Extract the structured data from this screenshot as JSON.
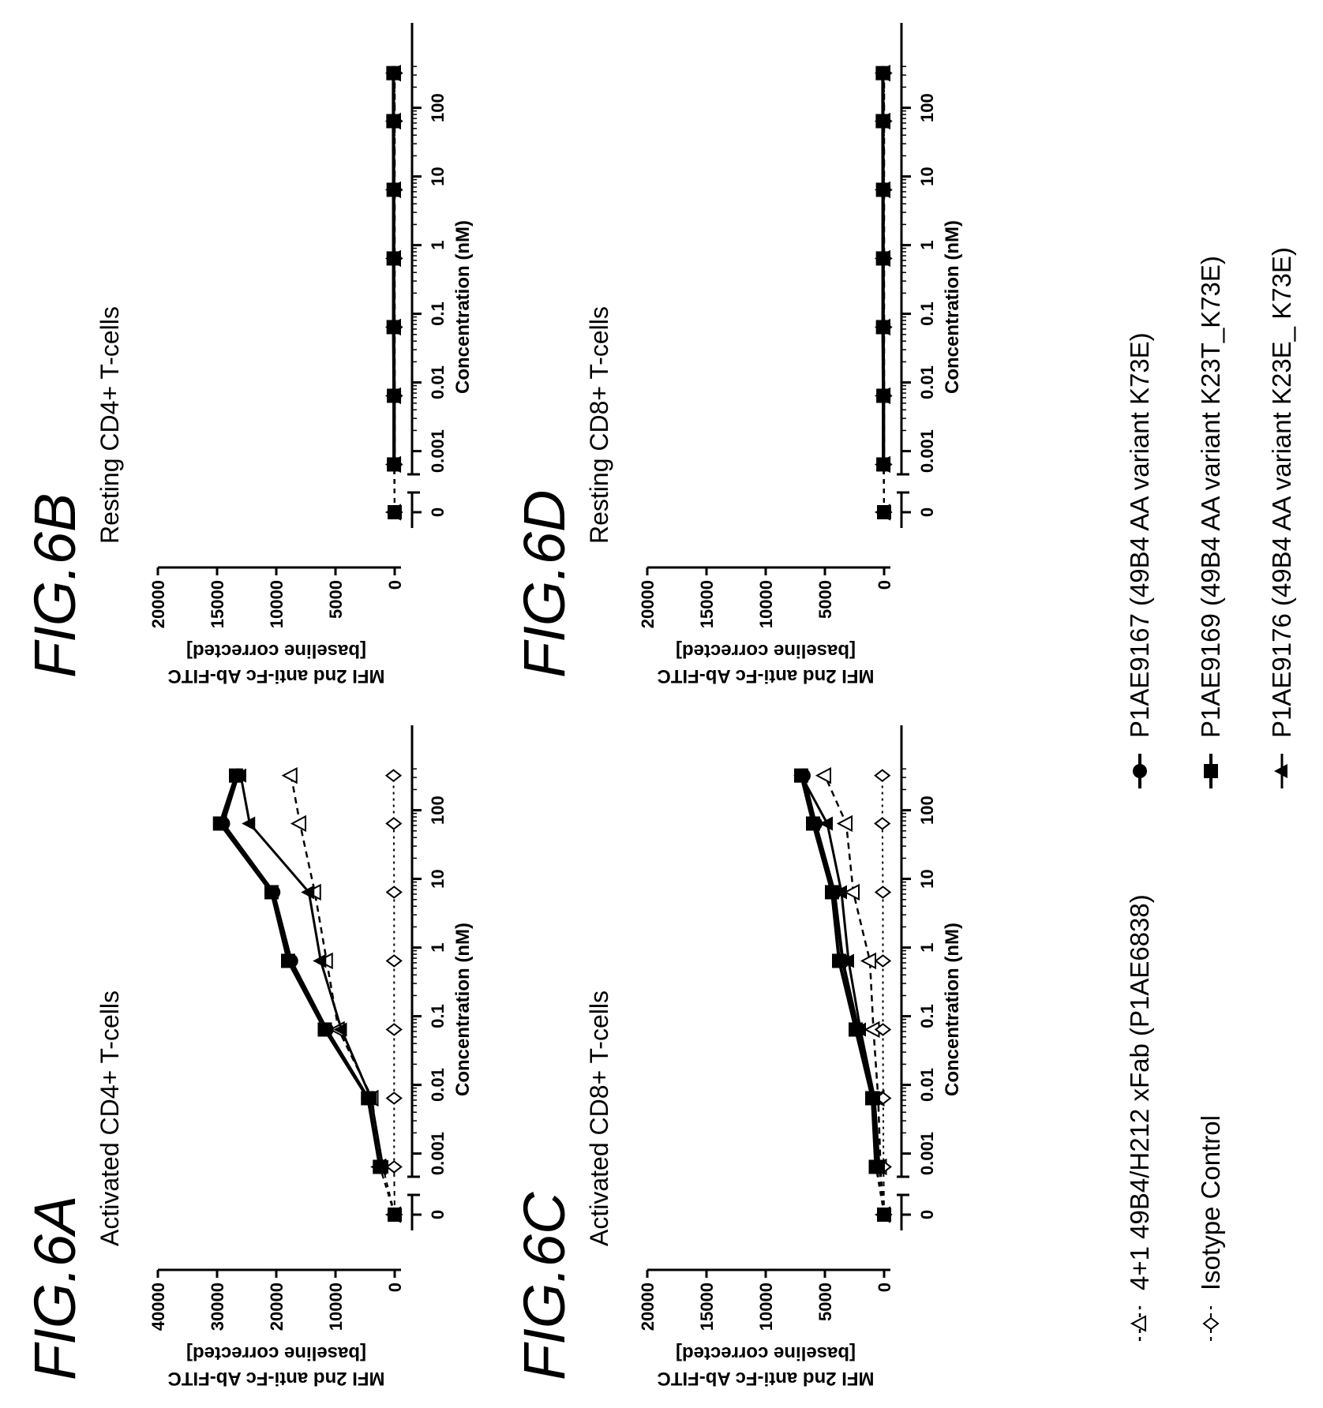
{
  "legend": [
    {
      "key": "ab4p1",
      "label": "4+1 49B4/H212 xFab (P1AE6838)"
    },
    {
      "key": "iso",
      "label": "Isotype Control"
    },
    {
      "key": "v167",
      "label": "P1AE9167 (49B4 AA variant K73E)"
    },
    {
      "key": "v169",
      "label": "P1AE9169 (49B4 AA variant K23T_K73E)"
    },
    {
      "key": "v176",
      "label": "P1AE9176 (49B4 AA variant K23E_ K73E)"
    }
  ],
  "chart_data": [
    {
      "type": "scatter",
      "fig_label": "FIG.6A",
      "title": "Activated  CD4+ T-cells",
      "xlabel": "Concentration (nM)",
      "ylabel_line1": "MFI 2nd anti-Fc Ab-FITC",
      "ylabel_line2": "[baseline corrected]",
      "x_scale": "log",
      "x_ticks": [
        "0",
        "0.001",
        "0.01",
        "0.1",
        "1",
        "10",
        "100"
      ],
      "y_ticks": [
        0,
        10000,
        20000,
        30000,
        40000
      ],
      "ylim": [
        0,
        40000
      ],
      "x": [
        0,
        0.00064,
        0.0064,
        0.064,
        0.64,
        6.4,
        64,
        320
      ],
      "series": [
        {
          "key": "ab4p1",
          "values": [
            0,
            2500,
            3800,
            9500,
            11500,
            13500,
            16000,
            17500
          ]
        },
        {
          "key": "iso",
          "values": [
            0,
            100,
            100,
            100,
            100,
            100,
            150,
            200
          ]
        },
        {
          "key": "v167",
          "values": [
            0,
            2500,
            4500,
            11500,
            17500,
            20500,
            29000,
            26500
          ]
        },
        {
          "key": "v169",
          "values": [
            0,
            2500,
            4500,
            11800,
            18000,
            20800,
            29500,
            26800
          ]
        },
        {
          "key": "v176",
          "values": [
            0,
            2000,
            4000,
            9000,
            12500,
            14500,
            24500,
            26000
          ]
        }
      ]
    },
    {
      "type": "scatter",
      "fig_label": "FIG.6B",
      "title": "Resting  CD4+ T-cells",
      "xlabel": "Concentration (nM)",
      "ylabel_line1": "MFI 2nd anti-Fc Ab-FITC",
      "ylabel_line2": "[baseline corrected]",
      "x_scale": "log",
      "x_ticks": [
        "0",
        "0.001",
        "0.01",
        "0.1",
        "1",
        "10",
        "100"
      ],
      "y_ticks": [
        0,
        5000,
        10000,
        15000,
        20000
      ],
      "ylim": [
        0,
        20000
      ],
      "x": [
        0,
        0.00064,
        0.0064,
        0.064,
        0.64,
        6.4,
        64,
        320
      ],
      "series": [
        {
          "key": "ab4p1",
          "values": [
            0,
            0,
            0,
            0,
            0,
            0,
            0,
            0
          ]
        },
        {
          "key": "iso",
          "values": [
            0,
            0,
            0,
            0,
            0,
            0,
            0,
            0
          ]
        },
        {
          "key": "v167",
          "values": [
            0,
            50,
            50,
            80,
            80,
            80,
            100,
            100
          ]
        },
        {
          "key": "v169",
          "values": [
            0,
            60,
            60,
            90,
            90,
            90,
            110,
            110
          ]
        },
        {
          "key": "v176",
          "values": [
            0,
            40,
            40,
            70,
            70,
            70,
            90,
            90
          ]
        }
      ]
    },
    {
      "type": "scatter",
      "fig_label": "FIG.6C",
      "title": "Activated  CD8+ T-cells",
      "xlabel": "Concentration (nM)",
      "ylabel_line1": "MFI 2nd anti-Fc Ab-FITC",
      "ylabel_line2": "[baseline corrected]",
      "x_scale": "log",
      "x_ticks": [
        "0",
        "0.001",
        "0.01",
        "0.1",
        "1",
        "10",
        "100"
      ],
      "y_ticks": [
        0,
        5000,
        10000,
        15000,
        20000
      ],
      "ylim": [
        0,
        20000
      ],
      "x": [
        0,
        0.00064,
        0.0064,
        0.064,
        0.64,
        6.4,
        64,
        320
      ],
      "series": [
        {
          "key": "ab4p1",
          "values": [
            0,
            300,
            500,
            900,
            1200,
            2600,
            3200,
            5000
          ]
        },
        {
          "key": "iso",
          "values": [
            0,
            50,
            80,
            100,
            100,
            100,
            150,
            150
          ]
        },
        {
          "key": "v167",
          "values": [
            0,
            600,
            1000,
            2200,
            3500,
            4200,
            5800,
            6800
          ]
        },
        {
          "key": "v169",
          "values": [
            0,
            700,
            1000,
            2400,
            3800,
            4400,
            6000,
            7000
          ]
        },
        {
          "key": "v176",
          "values": [
            0,
            400,
            800,
            2000,
            3000,
            3600,
            4800,
            7000
          ]
        }
      ]
    },
    {
      "type": "scatter",
      "fig_label": "FIG.6D",
      "title": "Resting  CD8+ T-cells",
      "xlabel": "Concentration (nM)",
      "ylabel_line1": "MFI 2nd anti-Fc Ab-FITC",
      "ylabel_line2": "[baseline corrected]",
      "x_scale": "log",
      "x_ticks": [
        "0",
        "0.001",
        "0.01",
        "0.1",
        "1",
        "10",
        "100"
      ],
      "y_ticks": [
        0,
        5000,
        10000,
        15000,
        20000
      ],
      "ylim": [
        0,
        20000
      ],
      "x": [
        0,
        0.00064,
        0.0064,
        0.064,
        0.64,
        6.4,
        64,
        320
      ],
      "series": [
        {
          "key": "ab4p1",
          "values": [
            0,
            0,
            0,
            0,
            0,
            0,
            0,
            0
          ]
        },
        {
          "key": "iso",
          "values": [
            0,
            0,
            0,
            0,
            0,
            0,
            0,
            0
          ]
        },
        {
          "key": "v167",
          "values": [
            0,
            50,
            50,
            80,
            80,
            80,
            100,
            100
          ]
        },
        {
          "key": "v169",
          "values": [
            0,
            60,
            60,
            90,
            90,
            90,
            110,
            110
          ]
        },
        {
          "key": "v176",
          "values": [
            0,
            40,
            40,
            70,
            70,
            70,
            90,
            90
          ]
        }
      ]
    }
  ]
}
